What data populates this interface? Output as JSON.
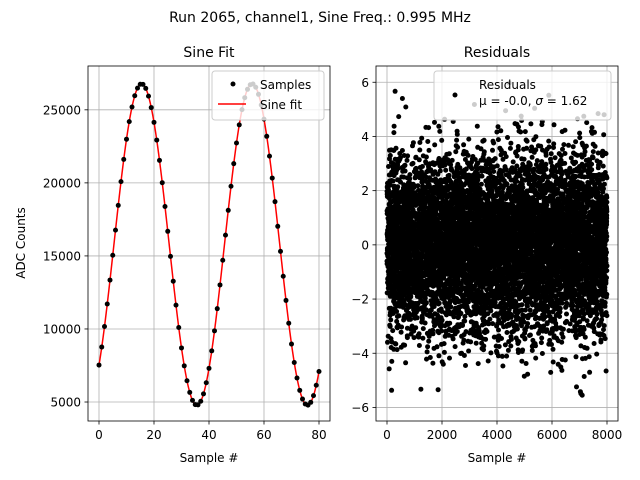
{
  "figure_title": "Run 2065, channel1, Sine Freq.: 0.995 MHz",
  "chart_data": [
    {
      "type": "line",
      "title": "Sine Fit",
      "xlabel": "Sample #",
      "ylabel": "ADC Counts",
      "xlim": [
        -4,
        84
      ],
      "ylim": [
        3700,
        28000
      ],
      "xticks": [
        0,
        20,
        40,
        60,
        80
      ],
      "yticks": [
        5000,
        10000,
        15000,
        20000,
        25000
      ],
      "grid": true,
      "legend_position": "top-right",
      "fit": {
        "mean": 15780,
        "amplitude": 11000,
        "period": 40.2,
        "phase_deg": -48.6,
        "x_range": [
          0,
          80
        ]
      },
      "series": [
        {
          "name": "Samples",
          "kind": "scatter",
          "color": "#000000"
        },
        {
          "name": "Sine fit",
          "kind": "line",
          "color": "#ff0000"
        }
      ]
    },
    {
      "type": "scatter",
      "title": "Residuals",
      "xlabel": "Sample #",
      "ylabel": "",
      "xlim": [
        -400,
        8400
      ],
      "ylim": [
        -6.5,
        6.6
      ],
      "xticks": [
        0,
        2000,
        4000,
        6000,
        8000
      ],
      "yticks": [
        -6,
        -4,
        -2,
        0,
        2,
        4,
        6
      ],
      "grid": true,
      "legend_position": "top-right",
      "series": [
        {
          "name": "Residuals",
          "color": "#000000"
        }
      ],
      "legend_stats_prefix": "μ = -0.0, ",
      "legend_stats_sigma_symbol": "σ",
      "legend_stats_suffix": " = 1.62",
      "stats": {
        "mu": -0.0,
        "sigma": 1.62,
        "n_samples": 8000
      }
    }
  ]
}
